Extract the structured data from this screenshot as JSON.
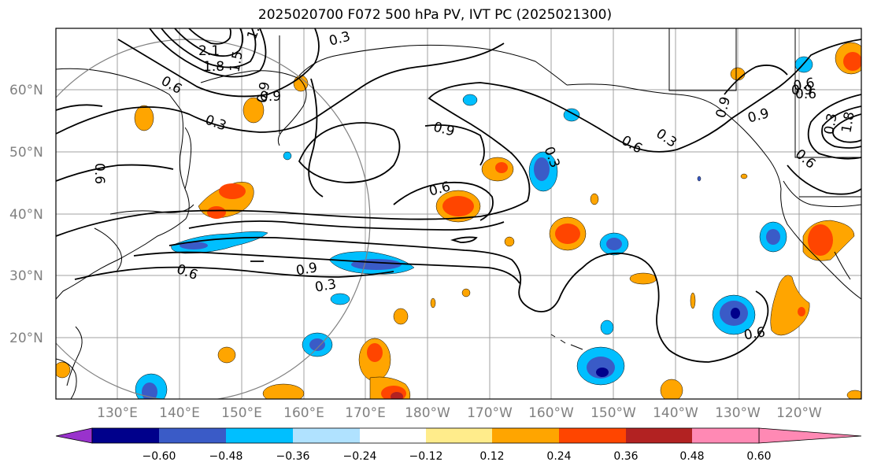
{
  "title": "2025020700 F072 500 hPa PV, IVT PC (2025021300)",
  "lat_labels": [
    "60°N",
    "50°N",
    "40°N",
    "30°N",
    "20°N"
  ],
  "lon_labels": [
    "130°E",
    "140°E",
    "150°E",
    "160°E",
    "170°E",
    "180°W",
    "170°W",
    "160°W",
    "150°W",
    "140°W",
    "130°W",
    "120°W"
  ],
  "contour_labels": [
    "2.1",
    "1.8",
    "1.5",
    "1.2",
    "0.3",
    "0.9",
    "0.6",
    "0.3",
    "0.6",
    "0.9",
    "0.6",
    "0.9",
    "0.6",
    "0.3",
    "0.9",
    "0.3",
    "0.6",
    "0.9",
    "0.3",
    "0.6",
    "0.3",
    "0.6",
    "0.6",
    "0.9",
    "0.6",
    "0.9",
    "1.8"
  ],
  "colorbar": {
    "ticks": [
      "−0.60",
      "−0.48",
      "−0.36",
      "−0.24",
      "−0.12",
      "0.12",
      "0.24",
      "0.36",
      "0.48",
      "0.60"
    ],
    "colors": [
      "#9932cc",
      "#00008b",
      "#3a5bc7",
      "#00bfff",
      "#b0e2ff",
      "#ffffff",
      "#ffec8b",
      "#ffa500",
      "#ff4500",
      "#b22222",
      "#ff89b4"
    ]
  }
}
